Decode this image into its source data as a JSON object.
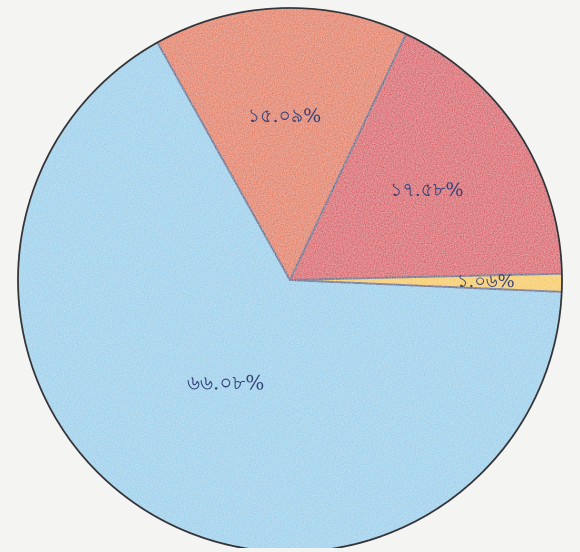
{
  "chart_data": {
    "type": "pie",
    "title": "",
    "slices": [
      {
        "label": "৬৬.০৮%",
        "value": 66.08,
        "color": "#8ccbea"
      },
      {
        "label": "১৫.০৯%",
        "value": 15.09,
        "color": "#e0622a"
      },
      {
        "label": "১৭.৫৮%",
        "value": 17.58,
        "color": "#d52b3e"
      },
      {
        "label": "১.০৬%",
        "value": 1.06,
        "color": "#f6c51c"
      }
    ],
    "legend": "none",
    "data_labels": "inside",
    "outline_color": "#2f3a78"
  }
}
